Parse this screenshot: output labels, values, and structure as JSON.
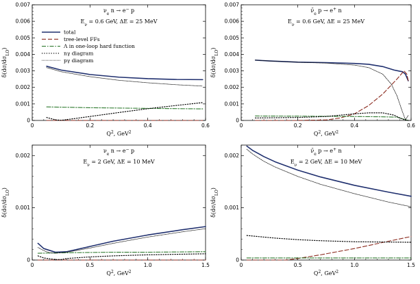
{
  "legend": [
    {
      "key": "total",
      "label": "total"
    },
    {
      "key": "tree",
      "label": "tree-level FFs"
    },
    {
      "key": "lambda",
      "label": "Λ in one-loop hard function"
    },
    {
      "key": "ngamma",
      "label": "nγ diagram"
    },
    {
      "key": "pgamma",
      "label": "pγ diagram"
    }
  ],
  "colors": {
    "total": "#1f2f6e",
    "tree": "#8b2a1e",
    "lambda": "#2f7a2f",
    "ngamma": "#000000",
    "pgamma": "#000000"
  },
  "chart_data": [
    {
      "type": "line",
      "panel": "top-left",
      "title": "ν_e n → e⁻ p",
      "annotation": "E_ν = 0.6 GeV, ΔE = 25 MeV",
      "xlabel": "Q², GeV²",
      "ylabel": "δ(dσ/dσ_LO)",
      "xlim": [
        0,
        0.6
      ],
      "ylim": [
        0,
        0.007
      ],
      "xticks": [
        0,
        0.2,
        0.4,
        0.6
      ],
      "xtick_labels": [
        "0",
        "0.2",
        "0.4",
        "0.6"
      ],
      "yticks": [
        0,
        0.001,
        0.002,
        0.003,
        0.004,
        0.005,
        0.006,
        0.007
      ],
      "ytick_labels": [
        "0",
        "0.001",
        "0.002",
        "0.003",
        "0.004",
        "0.005",
        "0.006",
        "0.007"
      ],
      "legend_position": "top-left",
      "series": [
        {
          "key": "total",
          "x": [
            0.05,
            0.1,
            0.2,
            0.3,
            0.4,
            0.5,
            0.59
          ],
          "y": [
            0.00328,
            0.00305,
            0.00278,
            0.00262,
            0.00253,
            0.00248,
            0.00247
          ]
        },
        {
          "key": "tree",
          "x": [
            0.05,
            0.2,
            0.4,
            0.59
          ],
          "y": [
            0.0,
            0.0,
            0.0,
            0.0
          ]
        },
        {
          "key": "lambda",
          "x": [
            0.05,
            0.2,
            0.4,
            0.59
          ],
          "y": [
            0.00082,
            0.00077,
            0.00073,
            0.0007
          ]
        },
        {
          "key": "ngamma",
          "x": [
            0.05,
            0.08,
            0.1,
            0.15,
            0.2,
            0.3,
            0.4,
            0.5,
            0.59
          ],
          "y": [
            0.00018,
            4e-05,
            1e-05,
            0.00012,
            0.00024,
            0.00048,
            0.00071,
            0.00091,
            0.00108
          ]
        },
        {
          "key": "pgamma",
          "x": [
            0.05,
            0.1,
            0.2,
            0.3,
            0.4,
            0.5,
            0.59
          ],
          "y": [
            0.0032,
            0.00295,
            0.00265,
            0.00243,
            0.00228,
            0.00216,
            0.00208
          ]
        }
      ]
    },
    {
      "type": "line",
      "panel": "top-right",
      "title": "ν̄_e p → e⁺ n",
      "annotation": "E_ν = 0.6 GeV, ΔE = 25 MeV",
      "xlabel": "Q², GeV²",
      "ylabel": "δ(dσ/dσ_LO)",
      "xlim": [
        0,
        0.6
      ],
      "ylim": [
        0,
        0.007
      ],
      "xticks": [
        0,
        0.2,
        0.4,
        0.6
      ],
      "xtick_labels": [
        "0",
        "0.2",
        "0.4",
        "0.6"
      ],
      "yticks": [
        0,
        0.001,
        0.002,
        0.003,
        0.004,
        0.005,
        0.006,
        0.007
      ],
      "ytick_labels": [
        "0",
        "0.001",
        "0.002",
        "0.003",
        "0.004",
        "0.005",
        "0.006",
        "0.007"
      ],
      "series": [
        {
          "key": "total",
          "x": [
            0.05,
            0.1,
            0.2,
            0.3,
            0.4,
            0.45,
            0.5,
            0.54,
            0.56,
            0.57,
            0.58,
            0.59
          ],
          "y": [
            0.00365,
            0.0036,
            0.00353,
            0.0035,
            0.00345,
            0.0034,
            0.00326,
            0.00305,
            0.00298,
            0.00295,
            0.0028,
            0.0024
          ]
        },
        {
          "key": "tree",
          "x": [
            0.05,
            0.2,
            0.3,
            0.35,
            0.4,
            0.45,
            0.5,
            0.55,
            0.575,
            0.585,
            0.59
          ],
          "y": [
            0.0,
            0.0,
            3e-05,
            0.00015,
            0.0004,
            0.0009,
            0.0016,
            0.0025,
            0.003,
            0.0028,
            0.0024
          ]
        },
        {
          "key": "lambda",
          "x": [
            0.05,
            0.2,
            0.4,
            0.5,
            0.55,
            0.57,
            0.59
          ],
          "y": [
            0.00027,
            0.00026,
            0.00024,
            0.00022,
            0.0002,
            0.0001,
            0.0
          ]
        },
        {
          "key": "ngamma",
          "x": [
            0.05,
            0.2,
            0.3,
            0.4,
            0.45,
            0.5,
            0.54,
            0.56,
            0.58,
            0.59
          ],
          "y": [
            0.00015,
            0.00018,
            0.00024,
            0.0004,
            0.00046,
            0.00046,
            0.00032,
            0.00015,
            2e-05,
            0.0
          ]
        },
        {
          "key": "pgamma",
          "x": [
            0.05,
            0.1,
            0.2,
            0.3,
            0.4,
            0.45,
            0.5,
            0.53,
            0.55,
            0.57,
            0.58,
            0.59
          ],
          "y": [
            0.00365,
            0.0036,
            0.00352,
            0.00347,
            0.00335,
            0.0032,
            0.0028,
            0.0022,
            0.0015,
            0.0005,
            5e-05,
            0.0003
          ]
        }
      ]
    },
    {
      "type": "line",
      "panel": "bottom-left",
      "title": "ν_e n → e⁻ p",
      "annotation": "E_ν = 2 GeV, ΔE = 10 MeV",
      "xlabel": "Q², GeV²",
      "ylabel": "δ(dσ/dσ_LO)",
      "xlim": [
        0,
        1.5
      ],
      "ylim": [
        0,
        0.0022
      ],
      "xticks": [
        0,
        0.5,
        1.0,
        1.5
      ],
      "xtick_labels": [
        "0",
        "0.5",
        "1.0",
        "1.5"
      ],
      "yticks": [
        0,
        0.001,
        0.002
      ],
      "ytick_labels": [
        "0",
        "0.001",
        "0.002"
      ],
      "series": [
        {
          "key": "total",
          "x": [
            0.05,
            0.1,
            0.2,
            0.3,
            0.5,
            0.7,
            1.0,
            1.3,
            1.5
          ],
          "y": [
            0.00032,
            0.00022,
            0.00015,
            0.00016,
            0.00026,
            0.00036,
            0.00048,
            0.00058,
            0.00064
          ]
        },
        {
          "key": "tree",
          "x": [
            0.05,
            0.5,
            1.0,
            1.5
          ],
          "y": [
            0.0,
            0.0,
            0.0,
            0.0
          ]
        },
        {
          "key": "lambda",
          "x": [
            0.05,
            0.3,
            0.7,
            1.0,
            1.5
          ],
          "y": [
            0.00013,
            0.00014,
            0.00015,
            0.00015,
            0.00016
          ]
        },
        {
          "key": "ngamma",
          "x": [
            0.05,
            0.1,
            0.2,
            0.25,
            0.3,
            0.5,
            0.7,
            1.0,
            1.5
          ],
          "y": [
            8e-05,
            4e-05,
            1e-05,
            1e-05,
            3e-05,
            6e-05,
            8e-05,
            0.0001,
            0.00012
          ]
        },
        {
          "key": "pgamma",
          "x": [
            0.05,
            0.1,
            0.15,
            0.2,
            0.25,
            0.3,
            0.5,
            0.7,
            1.0,
            1.3,
            1.5
          ],
          "y": [
            0.00024,
            0.00018,
            0.00014,
            0.00013,
            0.00014,
            0.00015,
            0.00023,
            0.00032,
            0.00044,
            0.00054,
            0.0006
          ]
        }
      ]
    },
    {
      "type": "line",
      "panel": "bottom-right",
      "title": "ν̄_e p → e⁺ n",
      "annotation": "E_ν = 2 GeV, ΔE = 10 MeV",
      "xlabel": "Q², GeV²",
      "ylabel": "δ(dσ/dσ_LO)",
      "xlim": [
        0,
        1.5
      ],
      "ylim": [
        0,
        0.0022
      ],
      "xticks": [
        0,
        0.5,
        1.0,
        1.5
      ],
      "xtick_labels": [
        "0",
        "0.5",
        "1.0",
        "1.5"
      ],
      "yticks": [
        0,
        0.001,
        0.002
      ],
      "ytick_labels": [
        "0",
        "0.001",
        "0.002"
      ],
      "series": [
        {
          "key": "total",
          "x": [
            0.05,
            0.1,
            0.2,
            0.3,
            0.5,
            0.7,
            1.0,
            1.3,
            1.5
          ],
          "y": [
            0.00218,
            0.0021,
            0.00198,
            0.00188,
            0.00172,
            0.00159,
            0.00143,
            0.0013,
            0.00122
          ]
        },
        {
          "key": "tree",
          "x": [
            0.05,
            0.4,
            0.5,
            0.7,
            1.0,
            1.3,
            1.5
          ],
          "y": [
            0.0,
            0.0,
            3e-05,
            0.0001,
            0.00022,
            0.00036,
            0.00045
          ]
        },
        {
          "key": "lambda",
          "x": [
            0.05,
            0.5,
            1.0,
            1.5
          ],
          "y": [
            4e-05,
            4e-05,
            4e-05,
            4e-05
          ]
        },
        {
          "key": "ngamma",
          "x": [
            0.05,
            0.3,
            0.5,
            0.7,
            1.0,
            1.5
          ],
          "y": [
            0.00047,
            0.00042,
            0.00039,
            0.00037,
            0.00035,
            0.00034
          ]
        },
        {
          "key": "pgamma",
          "x": [
            0.05,
            0.1,
            0.2,
            0.3,
            0.5,
            0.7,
            1.0,
            1.3,
            1.5
          ],
          "y": [
            0.00212,
            0.00203,
            0.00189,
            0.00178,
            0.0016,
            0.00145,
            0.00127,
            0.00111,
            0.00102
          ]
        }
      ]
    }
  ]
}
